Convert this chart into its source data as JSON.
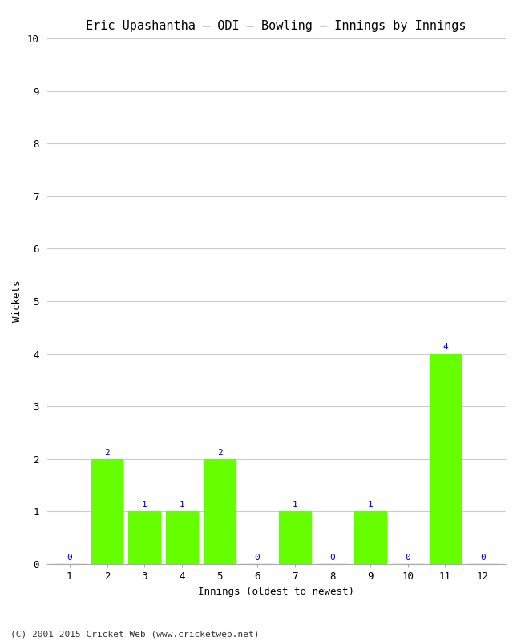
{
  "title": "Eric Upashantha – ODI – Bowling – Innings by Innings",
  "xlabel": "Innings (oldest to newest)",
  "ylabel": "Wickets",
  "categories": [
    1,
    2,
    3,
    4,
    5,
    6,
    7,
    8,
    9,
    10,
    11,
    12
  ],
  "values": [
    0,
    2,
    1,
    1,
    2,
    0,
    1,
    0,
    1,
    0,
    4,
    0
  ],
  "bar_color": "#66ff00",
  "bar_edge_color": "#66ff00",
  "label_color": "#0000cc",
  "ylim": [
    0,
    10
  ],
  "yticks": [
    0,
    1,
    2,
    3,
    4,
    5,
    6,
    7,
    8,
    9,
    10
  ],
  "background_color": "#ffffff",
  "grid_color": "#cccccc",
  "title_fontsize": 11,
  "axis_label_fontsize": 9,
  "tick_fontsize": 9,
  "label_fontsize": 8,
  "footer": "(C) 2001-2015 Cricket Web (www.cricketweb.net)",
  "footer_fontsize": 8
}
